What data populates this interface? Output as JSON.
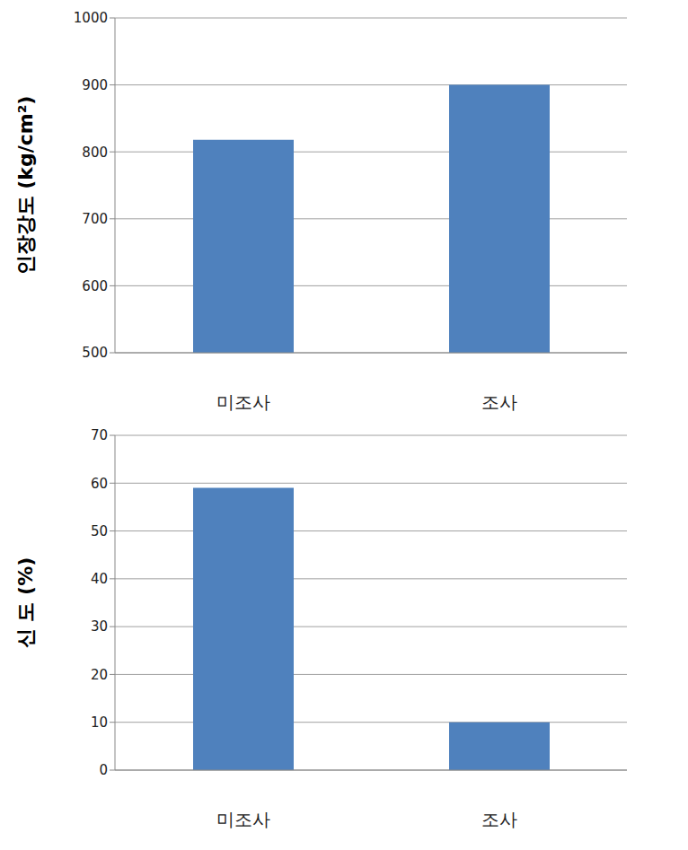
{
  "chart_data": [
    {
      "type": "bar",
      "y_label": "인장강도 (kg/cm²)",
      "categories": [
        "미조사",
        "조사"
      ],
      "values": [
        818,
        900
      ],
      "color": "#4f81bd",
      "ylim": [
        500,
        1000
      ],
      "yticks": [
        500,
        600,
        700,
        800,
        900,
        1000
      ],
      "grid": true
    },
    {
      "type": "bar",
      "y_label": "신 도 (%)",
      "categories": [
        "미조사",
        "조사"
      ],
      "values": [
        59,
        10
      ],
      "color": "#4f81bd",
      "ylim": [
        0,
        70
      ],
      "yticks": [
        0,
        10,
        20,
        30,
        40,
        50,
        60,
        70
      ],
      "grid": true
    }
  ]
}
